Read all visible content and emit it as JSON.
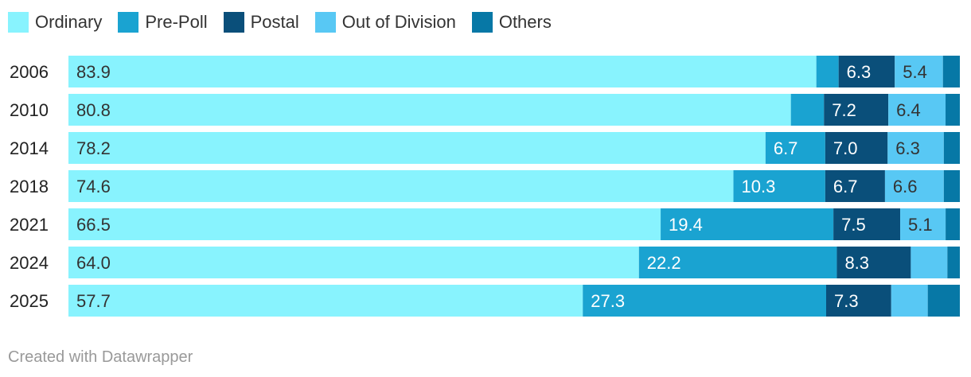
{
  "chart_data": {
    "type": "bar",
    "orientation": "horizontal",
    "stacked": true,
    "categories": [
      "2006",
      "2010",
      "2014",
      "2018",
      "2021",
      "2024",
      "2025"
    ],
    "series": [
      {
        "name": "Ordinary",
        "color": "#88f3fe",
        "values": [
          83.9,
          80.8,
          78.2,
          74.6,
          66.5,
          64.0,
          57.7
        ]
      },
      {
        "name": "Pre-Poll",
        "color": "#1aa3d1",
        "values": [
          2.5,
          3.7,
          6.7,
          10.3,
          19.4,
          22.2,
          27.3
        ]
      },
      {
        "name": "Postal",
        "color": "#0a4f7a",
        "values": [
          6.3,
          7.2,
          7.0,
          6.7,
          7.5,
          8.3,
          7.3
        ]
      },
      {
        "name": "Out of Division",
        "color": "#58c8f4",
        "values": [
          5.4,
          6.4,
          6.3,
          6.6,
          5.1,
          4.1,
          4.1
        ]
      },
      {
        "name": "Others",
        "color": "#0778a6",
        "values": [
          1.9,
          1.6,
          1.8,
          1.8,
          1.6,
          1.4,
          3.6
        ]
      }
    ],
    "data_labels": [
      [
        "83.9",
        "",
        "6.3",
        "5.4",
        ""
      ],
      [
        "80.8",
        "",
        "7.2",
        "6.4",
        ""
      ],
      [
        "78.2",
        "6.7",
        "7.0",
        "6.3",
        ""
      ],
      [
        "74.6",
        "10.3",
        "6.7",
        "6.6",
        ""
      ],
      [
        "66.5",
        "19.4",
        "7.5",
        "5.1",
        ""
      ],
      [
        "64.0",
        "22.2",
        "8.3",
        "",
        ""
      ],
      [
        "57.7",
        "27.3",
        "7.3",
        "",
        ""
      ]
    ],
    "xlim": [
      0,
      100
    ],
    "grid": false,
    "legend_position": "top-left"
  },
  "footer": "Created with Datawrapper"
}
